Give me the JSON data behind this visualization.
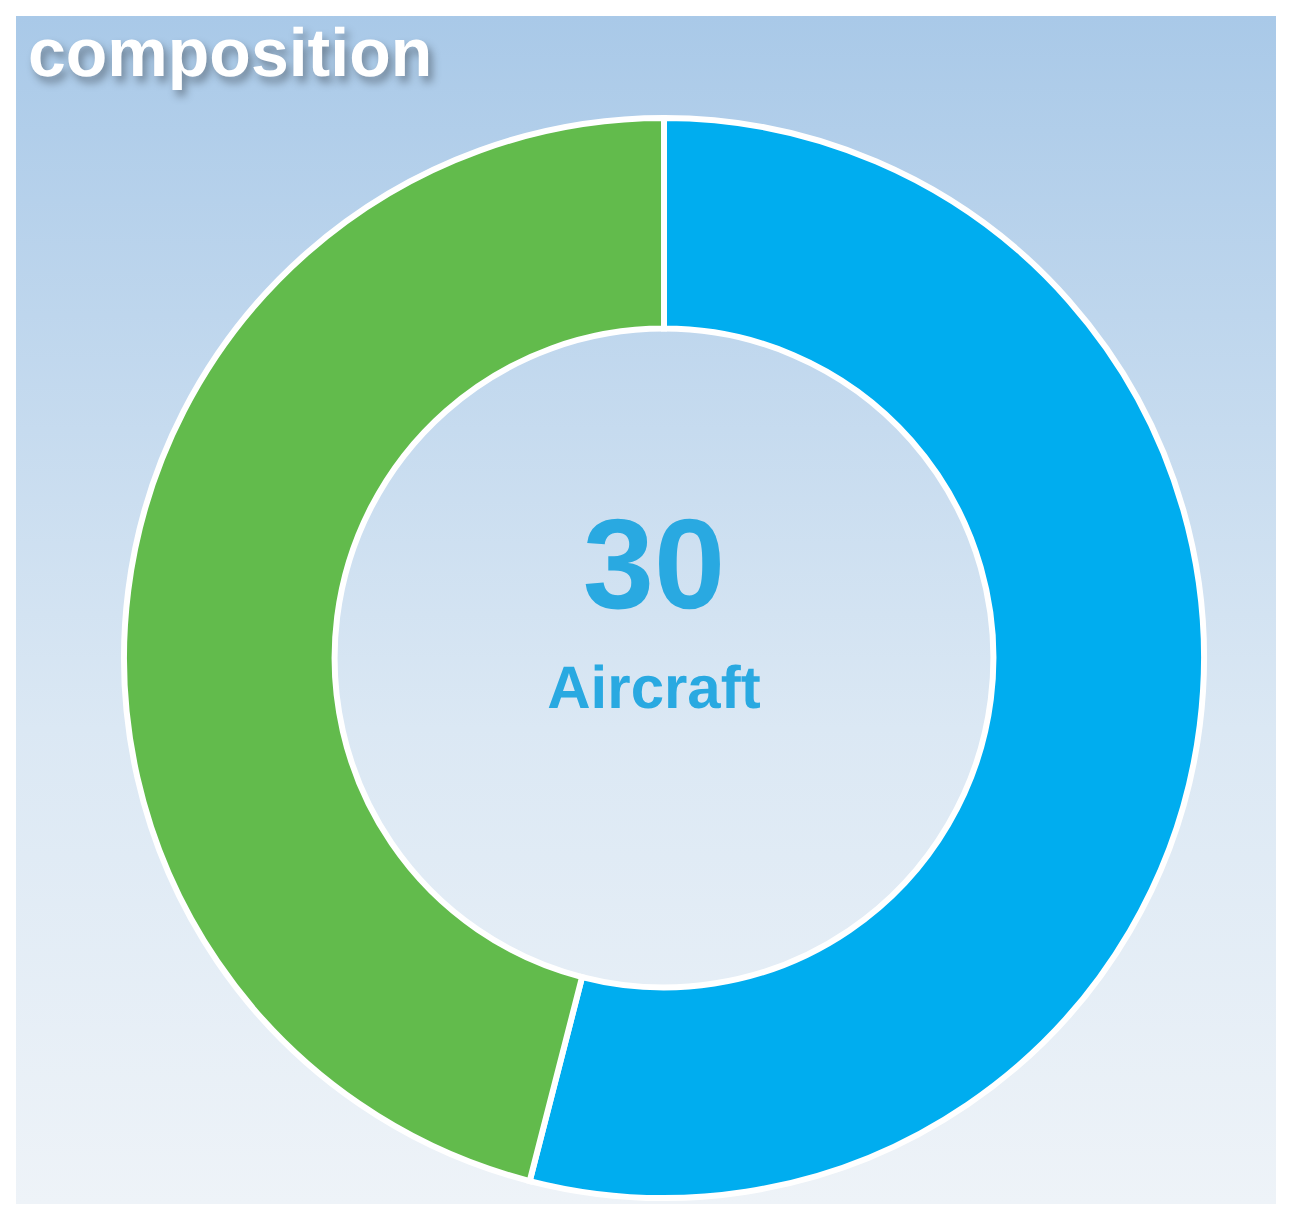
{
  "chart_data": {
    "type": "donut",
    "title": "composition",
    "categories": [
      null,
      null
    ],
    "values": [
      54,
      46
    ],
    "colors": [
      "#00adef",
      "#62bb4c"
    ],
    "annotations": [
      "30",
      "Aircraft"
    ]
  }
}
